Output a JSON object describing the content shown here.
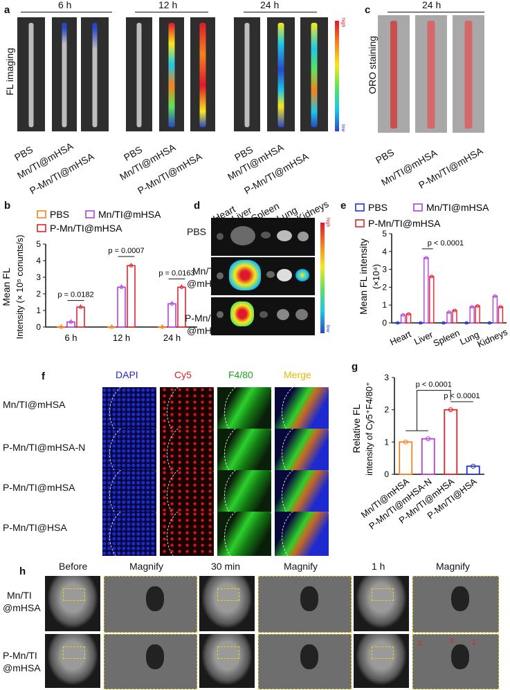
{
  "panel_a": {
    "label": "a",
    "y_label": "FL  imaging",
    "timepoints": [
      "6 h",
      "12 h",
      "24 h"
    ],
    "sample_labels": [
      "PBS",
      "Mn/TI@mHSA",
      "P-Mn/TI@mHSA"
    ],
    "colorbar_high": "high",
    "colorbar_low": "low"
  },
  "panel_c": {
    "label": "c",
    "timepoint": "24 h",
    "y_label": "ORO staining",
    "sample_labels": [
      "PBS",
      "Mn/TI@mHSA",
      "P-Mn/TI@mHSA"
    ]
  },
  "panel_d": {
    "label": "d",
    "organs": [
      "Heart",
      "Liver",
      "Spleen",
      "Lung",
      "Kidneys"
    ],
    "row_labels": [
      "PBS",
      "Mn/TI\n@mHSA",
      "P-Mn/TI\n@mHSA"
    ],
    "row_label_lines": [
      [
        "PBS"
      ],
      [
        "Mn/TI",
        "@mHSA"
      ],
      [
        "P-Mn/TI",
        "@mHSA"
      ]
    ],
    "colorbar_high": "high",
    "colorbar_low": "low"
  },
  "panel_f": {
    "label": "f",
    "channels": [
      "DAPI",
      "Cy5",
      "F4/80",
      "Merge"
    ],
    "channel_colors": [
      "#2323d6",
      "#e02020",
      "#1aa51a",
      "#e8b800"
    ],
    "rows": [
      "Mn/TI@mHSA",
      "P-Mn/TI@mHSA-N",
      "P-Mn/TI@mHSA",
      "P-Mn/TI@HSA"
    ]
  },
  "panel_h": {
    "label": "h",
    "columns": [
      "Before",
      "Magnify",
      "30 min",
      "Magnify",
      "1 h",
      "Magnify"
    ],
    "rows": [
      [
        "Mn/TI",
        "@mHSA"
      ],
      [
        "P-Mn/TI",
        "@mHSA"
      ]
    ],
    "annotations": [
      "2",
      "3",
      "1"
    ]
  },
  "chart_data": [
    {
      "panel": "b",
      "type": "bar",
      "categories": [
        "6 h",
        "12 h",
        "24 h"
      ],
      "series": [
        {
          "name": "PBS",
          "color": "#f58220",
          "values": [
            0.0,
            0.0,
            0.0
          ]
        },
        {
          "name": "Mn/TI@mHSA",
          "color": "#b040e0",
          "values": [
            0.3,
            2.4,
            1.4
          ]
        },
        {
          "name": "P-Mn/TI@mHSA",
          "color": "#e8202a",
          "values": [
            1.2,
            3.7,
            2.4
          ]
        }
      ],
      "ylabel_lines": [
        "Mean FL",
        "Intensity (× 10⁵ conunts/s)"
      ],
      "ylim": [
        0,
        5
      ],
      "yticks": [
        0,
        1,
        2,
        3,
        4,
        5
      ],
      "annotations": [
        "p = 0.0182",
        "p = 0.0007",
        "p = 0.0163"
      ],
      "legend_placement": "top"
    },
    {
      "panel": "e",
      "type": "bar",
      "categories": [
        "Heart",
        "Liver",
        "Spleen",
        "Lung",
        "Kidneys"
      ],
      "series": [
        {
          "name": "PBS",
          "color": "#2030d0",
          "values": [
            0.0,
            0.0,
            0.0,
            0.0,
            0.0
          ]
        },
        {
          "name": "Mn/TI@mHSA",
          "color": "#b040e0",
          "values": [
            0.45,
            3.65,
            0.6,
            0.9,
            1.5
          ]
        },
        {
          "name": "P-Mn/TI@mHSA",
          "color": "#e8202a",
          "values": [
            0.5,
            2.6,
            0.7,
            0.95,
            0.9
          ]
        }
      ],
      "ylabel_lines": [
        "Mean FL intensity",
        "(×10⁴)"
      ],
      "ylim": [
        0,
        5
      ],
      "yticks": [
        0,
        1,
        2,
        3,
        4,
        5
      ],
      "annotations": [
        "p < 0.0001"
      ],
      "legend_placement": "top"
    },
    {
      "panel": "g",
      "type": "bar",
      "categories": [
        "Mn/TI@mHSA",
        "P-Mn/TI@mHSA-N",
        "P-Mn/TI@mHSA",
        "P-Mn/TI@HSA"
      ],
      "colors": [
        "#f58220",
        "#b040e0",
        "#e8202a",
        "#2030d0"
      ],
      "values": [
        1.0,
        1.1,
        2.0,
        0.25
      ],
      "ylabel_lines": [
        "Relative FL",
        "intensity of Cy5⁺F4/80⁺"
      ],
      "ylim": [
        0,
        3
      ],
      "yticks": [
        0,
        1,
        2,
        3
      ],
      "annotations": [
        "p < 0.0001",
        "p < 0.0001"
      ]
    }
  ]
}
